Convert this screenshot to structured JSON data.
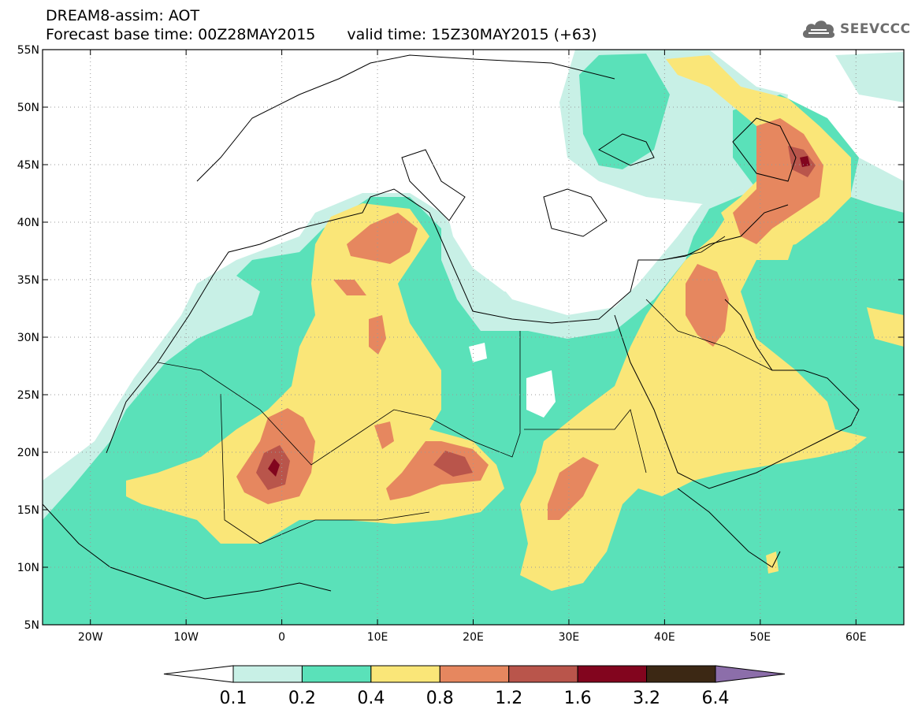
{
  "header": {
    "title_line1": "DREAM8-assim: AOT",
    "base_time": "Forecast base time: 00Z28MAY2015",
    "valid_time": "valid time: 15Z30MAY2015 (+63)"
  },
  "logo": {
    "text": "SEEVCCC",
    "icon": "cloud-icon"
  },
  "map": {
    "variable": "AOT",
    "lon_range": [
      -25,
      65
    ],
    "lat_range": [
      5,
      55
    ],
    "lon_ticks": [
      {
        "lon": -20,
        "label": "20W"
      },
      {
        "lon": -10,
        "label": "10W"
      },
      {
        "lon": 0,
        "label": "0"
      },
      {
        "lon": 10,
        "label": "10E"
      },
      {
        "lon": 20,
        "label": "20E"
      },
      {
        "lon": 30,
        "label": "30E"
      },
      {
        "lon": 40,
        "label": "40E"
      },
      {
        "lon": 50,
        "label": "50E"
      },
      {
        "lon": 60,
        "label": "60E"
      }
    ],
    "lat_ticks": [
      {
        "lat": 55,
        "label": "55N"
      },
      {
        "lat": 50,
        "label": "50N"
      },
      {
        "lat": 45,
        "label": "45N"
      },
      {
        "lat": 40,
        "label": "40N"
      },
      {
        "lat": 35,
        "label": "35N"
      },
      {
        "lat": 30,
        "label": "30N"
      },
      {
        "lat": 25,
        "label": "25N"
      },
      {
        "lat": 20,
        "label": "20N"
      },
      {
        "lat": 15,
        "label": "15N"
      },
      {
        "lat": 10,
        "label": "10N"
      },
      {
        "lat": 5,
        "label": "5N"
      }
    ],
    "grid": "dotted",
    "colors": {
      "lt0.1": "#ffffff",
      "0.1-0.2": "#c8f0e6",
      "0.2-0.4": "#5ae1b9",
      "0.4-0.8": "#fae678",
      "0.8-1.2": "#e6875f",
      "1.2-1.6": "#b9554b",
      "1.6-3.2": "#82051e",
      "3.2-6.4": "#3c2814",
      "gt6.4": "#8c6eaa"
    }
  },
  "colorbar": {
    "labels": [
      "0.1",
      "0.2",
      "0.4",
      "0.8",
      "1.2",
      "1.6",
      "3.2",
      "6.4"
    ],
    "colors": [
      "#ffffff",
      "#c8f0e6",
      "#5ae1b9",
      "#fae678",
      "#e6875f",
      "#b9554b",
      "#82051e",
      "#3c2814",
      "#8c6eaa"
    ]
  }
}
